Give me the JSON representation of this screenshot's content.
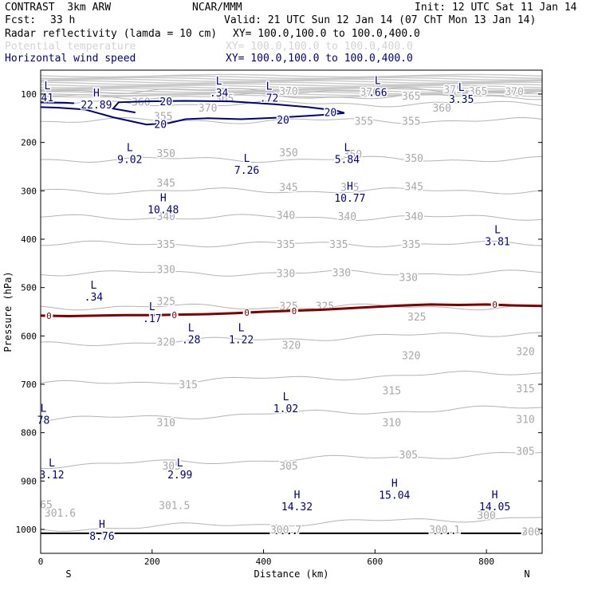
{
  "header": {
    "title": "CONTRAST  3km ARW",
    "center": "NCAR/MMM",
    "init": "Init: 12 UTC Sat 11 Jan 14",
    "fcst_label": "Fcst:",
    "fcst_value": "33 h",
    "valid": "Valid: 21 UTC Sun 12 Jan 14 (07 ChT Mon 13 Jan 14)"
  },
  "fields": [
    {
      "name": "Radar reflectivity (lamda = 10 cm)",
      "xy": "XY= 100.0,100.0 to 100.0,400.0",
      "color": "#000000"
    },
    {
      "name": "Potential temperature",
      "xy": "XY= 100.0,100.0 to 100.0,400.0",
      "color": "#d3d3d3"
    },
    {
      "name": "Horizontal wind speed",
      "xy": "XY= 100.0,100.0 to 100.0,400.0",
      "color": "#000080"
    }
  ],
  "colors": {
    "theta": "#b4b4b4",
    "wind": "#00007f",
    "zero_line": "#800000",
    "labels_dark": "#00007f",
    "labels_light": "#a8a8a8"
  },
  "chart_data": {
    "type": "contour",
    "xlabel": "Distance (km)",
    "ylabel": "Pressure (hPa)",
    "xlim": [
      0,
      900
    ],
    "ylim": [
      1050,
      60
    ],
    "x_ticks": [
      0,
      200,
      400,
      600,
      800
    ],
    "y_ticks": [
      100,
      200,
      300,
      400,
      500,
      600,
      700,
      800,
      900,
      1000
    ],
    "end_labels": [
      "S",
      "N"
    ],
    "theta_levels": [
      {
        "level": "300",
        "p": 1000
      },
      {
        "level": "305",
        "p": 868
      },
      {
        "level": "310",
        "p": 773
      },
      {
        "level": "315",
        "p": 700
      },
      {
        "level": "320",
        "p": 618
      },
      {
        "level": "325",
        "p": 540
      },
      {
        "level": "330",
        "p": 470
      },
      {
        "level": "335",
        "p": 410
      },
      {
        "level": "340",
        "p": 355
      },
      {
        "level": "345",
        "p": 300
      },
      {
        "level": "350",
        "p": 235
      },
      {
        "level": "355",
        "p": 155
      },
      {
        "level": "360",
        "p": 120
      },
      {
        "level": "365",
        "p": 105
      },
      {
        "level": "370",
        "p": 93
      }
    ],
    "theta_labels": [
      {
        "text": "370",
        "x": 445,
        "p": 93
      },
      {
        "text": "375",
        "x": 740,
        "p": 90
      },
      {
        "text": "365",
        "x": 330,
        "p": 108
      },
      {
        "text": "370",
        "x": 300,
        "p": 128
      },
      {
        "text": "360",
        "x": 180,
        "p": 116
      },
      {
        "text": "370",
        "x": 590,
        "p": 95
      },
      {
        "text": "365",
        "x": 665,
        "p": 103
      },
      {
        "text": "365",
        "x": 785,
        "p": 93
      },
      {
        "text": "370",
        "x": 850,
        "p": 94
      },
      {
        "text": "360",
        "x": 720,
        "p": 128
      },
      {
        "text": "355",
        "x": 220,
        "p": 145
      },
      {
        "text": "355",
        "x": 580,
        "p": 155
      },
      {
        "text": "355",
        "x": 665,
        "p": 155
      },
      {
        "text": "350",
        "x": 225,
        "p": 222
      },
      {
        "text": "350",
        "x": 445,
        "p": 220
      },
      {
        "text": "350",
        "x": 560,
        "p": 224
      },
      {
        "text": "350",
        "x": 670,
        "p": 232
      },
      {
        "text": "345",
        "x": 225,
        "p": 283
      },
      {
        "text": "345",
        "x": 445,
        "p": 292
      },
      {
        "text": "345",
        "x": 555,
        "p": 292
      },
      {
        "text": "345",
        "x": 670,
        "p": 290
      },
      {
        "text": "340",
        "x": 225,
        "p": 352
      },
      {
        "text": "340",
        "x": 440,
        "p": 350
      },
      {
        "text": "340",
        "x": 550,
        "p": 352
      },
      {
        "text": "340",
        "x": 670,
        "p": 352
      },
      {
        "text": "335",
        "x": 225,
        "p": 410
      },
      {
        "text": "335",
        "x": 440,
        "p": 410
      },
      {
        "text": "335",
        "x": 535,
        "p": 410
      },
      {
        "text": "335",
        "x": 665,
        "p": 410
      },
      {
        "text": "330",
        "x": 225,
        "p": 462
      },
      {
        "text": "330",
        "x": 440,
        "p": 470
      },
      {
        "text": "330",
        "x": 540,
        "p": 468
      },
      {
        "text": "330",
        "x": 660,
        "p": 478
      },
      {
        "text": "325",
        "x": 225,
        "p": 528
      },
      {
        "text": "325",
        "x": 445,
        "p": 538
      },
      {
        "text": "325",
        "x": 510,
        "p": 538
      },
      {
        "text": "325",
        "x": 675,
        "p": 560
      },
      {
        "text": "320",
        "x": 225,
        "p": 612
      },
      {
        "text": "320",
        "x": 450,
        "p": 618
      },
      {
        "text": "320",
        "x": 665,
        "p": 640
      },
      {
        "text": "320",
        "x": 870,
        "p": 632
      },
      {
        "text": "315",
        "x": 265,
        "p": 700
      },
      {
        "text": "315",
        "x": 630,
        "p": 712
      },
      {
        "text": "315",
        "x": 870,
        "p": 708
      },
      {
        "text": "310",
        "x": 225,
        "p": 778
      },
      {
        "text": "310",
        "x": 630,
        "p": 778
      },
      {
        "text": "310",
        "x": 870,
        "p": 772
      },
      {
        "text": "305",
        "x": 235,
        "p": 868
      },
      {
        "text": "305",
        "x": 445,
        "p": 868
      },
      {
        "text": "305",
        "x": 660,
        "p": 845
      },
      {
        "text": "305",
        "x": 870,
        "p": 838
      },
      {
        "text": "301.6",
        "x": 35,
        "p": 965
      },
      {
        "text": "301.5",
        "x": 240,
        "p": 950
      },
      {
        "text": "300.7",
        "x": 440,
        "p": 1000
      },
      {
        "text": "300.1",
        "x": 725,
        "p": 1000
      },
      {
        "text": "300",
        "x": 800,
        "p": 970
      },
      {
        "text": "300",
        "x": 880,
        "p": 1004
      },
      {
        "text": "65",
        "x": 10,
        "p": 948
      }
    ],
    "wind_contour": {
      "level": "20",
      "unit_hint": "m/s"
    },
    "wind_labels": [
      {
        "text": "20",
        "x": 225,
        "p": 115
      },
      {
        "text": "20",
        "x": 520,
        "p": 137
      },
      {
        "text": "20",
        "x": 215,
        "p": 162
      },
      {
        "text": "20",
        "x": 435,
        "p": 153
      }
    ],
    "zero_reflectivity_line": {
      "label": "0",
      "x": [
        0,
        50,
        100,
        150,
        200,
        250,
        300,
        350,
        400,
        450,
        500,
        550,
        600,
        650,
        700,
        750,
        800,
        850,
        900
      ],
      "p": [
        558,
        559,
        558,
        557,
        557,
        556,
        555,
        553,
        550,
        548,
        546,
        543,
        540,
        537,
        535,
        536,
        535,
        537,
        538
      ],
      "label_positions": [
        {
          "x": 15,
          "p": 558
        },
        {
          "x": 240,
          "p": 557
        },
        {
          "x": 370,
          "p": 552
        },
        {
          "x": 455,
          "p": 548
        },
        {
          "x": 815,
          "p": 535
        }
      ]
    },
    "extrema": [
      {
        "type": "L",
        "value": "41",
        "x": 12,
        "p": 90,
        "dark": true
      },
      {
        "type": "H",
        "value": "22.89",
        "x": 100,
        "p": 105,
        "dark": true
      },
      {
        "type": "L",
        "value": ".34",
        "x": 320,
        "p": 80,
        "dark": true
      },
      {
        "type": "L",
        "value": ".72",
        "x": 410,
        "p": 91,
        "dark": true
      },
      {
        "type": "L",
        "value": ".66",
        "x": 605,
        "p": 79,
        "dark": true
      },
      {
        "type": "L",
        "value": "3.35",
        "x": 755,
        "p": 93,
        "dark": true
      },
      {
        "type": "L",
        "value": "9.02",
        "x": 160,
        "p": 218,
        "dark": true
      },
      {
        "type": "L",
        "value": "7.26",
        "x": 370,
        "p": 240,
        "dark": true
      },
      {
        "type": "L",
        "value": "5.84",
        "x": 550,
        "p": 218,
        "dark": true
      },
      {
        "type": "H",
        "value": "10.48",
        "x": 220,
        "p": 322,
        "dark": true
      },
      {
        "type": "H",
        "value": "10.77",
        "x": 555,
        "p": 298,
        "dark": true
      },
      {
        "type": "L",
        "value": "3.81",
        "x": 820,
        "p": 388,
        "dark": true
      },
      {
        "type": "L",
        "value": ".34",
        "x": 95,
        "p": 502,
        "dark": true
      },
      {
        "type": "L",
        "value": ".17",
        "x": 200,
        "p": 547,
        "dark": true
      },
      {
        "type": "L",
        "value": ".28",
        "x": 270,
        "p": 590,
        "dark": true
      },
      {
        "type": "L",
        "value": "1.22",
        "x": 360,
        "p": 590,
        "dark": true
      },
      {
        "type": "L",
        "value": "1.02",
        "x": 440,
        "p": 733,
        "dark": true
      },
      {
        "type": "L",
        "value": "78",
        "x": 5,
        "p": 757,
        "dark": true
      },
      {
        "type": "L",
        "value": "3.12",
        "x": 20,
        "p": 870,
        "dark": true
      },
      {
        "type": "L",
        "value": "2.99",
        "x": 250,
        "p": 870,
        "dark": true
      },
      {
        "type": "H",
        "value": "14.32",
        "x": 460,
        "p": 936,
        "dark": true
      },
      {
        "type": "H",
        "value": "15.04",
        "x": 635,
        "p": 912,
        "dark": true
      },
      {
        "type": "H",
        "value": "14.05",
        "x": 815,
        "p": 936,
        "dark": true
      },
      {
        "type": "H",
        "value": "8.76",
        "x": 110,
        "p": 997,
        "dark": true
      }
    ]
  }
}
